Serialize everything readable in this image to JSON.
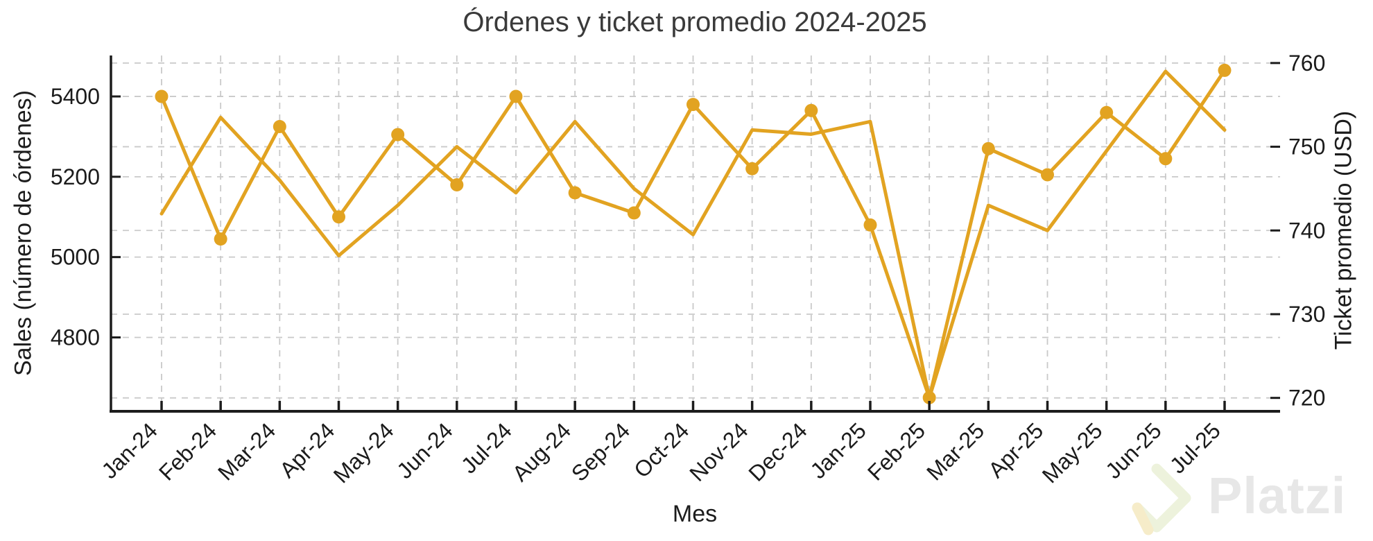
{
  "page": {
    "background": "#ffffff"
  },
  "chart": {
    "title": "Órdenes y ticket promedio 2024-2025",
    "xlabel": "Mes",
    "ylabel_left": "Sales (número de órdenes)",
    "ylabel_right": "Ticket promedio (USD)"
  },
  "watermark": {
    "brand": "Platzi",
    "logo": "platzi-diamond-logo",
    "text_color": "#e7e7e7",
    "logo_stroke_color": "#edf2dc",
    "logo_tail_color": "#f6ecc9"
  },
  "chart_data": {
    "type": "line",
    "title": "Órdenes y ticket promedio 2024-2025",
    "xlabel": "Mes",
    "ylabel_left": "Sales (número de órdenes)",
    "ylabel_right": "Ticket promedio (USD)",
    "categories": [
      "Jan-24",
      "Feb-24",
      "Mar-24",
      "Apr-24",
      "May-24",
      "Jun-24",
      "Jul-24",
      "Aug-24",
      "Sep-24",
      "Oct-24",
      "Nov-24",
      "Dec-24",
      "Jan-25",
      "Feb-25",
      "Mar-25",
      "Apr-25",
      "May-25",
      "Jun-25",
      "Jul-25"
    ],
    "series": [
      {
        "name": "Sales (número de órdenes)",
        "axis": "left",
        "marker": "circle",
        "values": [
          5400,
          5045,
          5325,
          5100,
          5305,
          5180,
          5400,
          5160,
          5110,
          5380,
          5220,
          5365,
          5080,
          4650,
          5270,
          5205,
          5360,
          5245,
          5465
        ]
      },
      {
        "name": "Ticket promedio (USD)",
        "axis": "right",
        "marker": "none",
        "values": [
          742,
          753.5,
          746,
          737,
          743,
          750,
          744.5,
          753,
          745,
          739.5,
          752,
          751.5,
          753,
          720,
          743,
          740,
          749.5,
          759,
          752
        ]
      }
    ],
    "yticks_left": [
      5400,
      5200,
      5000,
      4800
    ],
    "yticks_right": [
      760,
      750,
      740,
      730,
      720
    ],
    "ylim_left": [
      4616,
      5502
    ],
    "ylim_right": [
      718.4,
      760.9
    ],
    "grid": true,
    "grid_style": "dashed",
    "x_tick_rotation": 45,
    "legend": "none",
    "line_color": "#E2A321",
    "marker_color": "#E2A321",
    "grid_color": "#c9c9c9",
    "spine_color": "#1c1c1c"
  }
}
